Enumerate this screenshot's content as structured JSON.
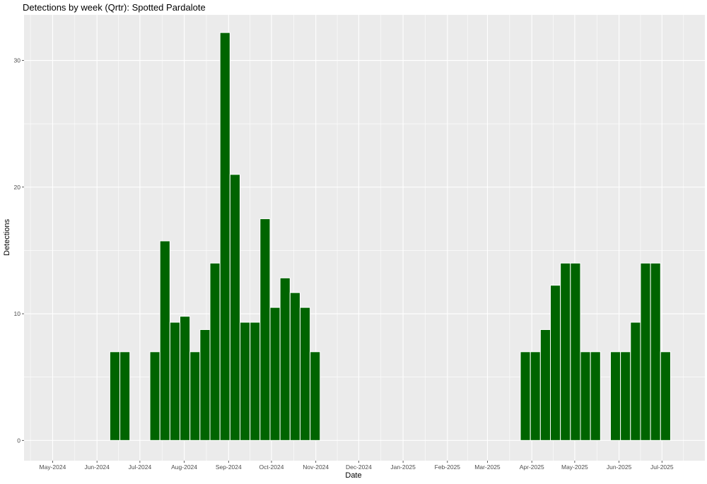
{
  "chart_data": {
    "type": "bar",
    "title": "Detections by week (Qrtr): Spotted Pardalote",
    "xlabel": "Date",
    "ylabel": "Detections",
    "bar_color": "#006400",
    "panel_color": "#ebebeb",
    "grid": true,
    "x_range": [
      "2024-04-11",
      "2025-07-31"
    ],
    "ylim": [
      -1.6,
      33.6
    ],
    "y_ticks": [
      0,
      10,
      20,
      30
    ],
    "x_ticks": [
      {
        "date": "2024-05-01",
        "label": "May-2024"
      },
      {
        "date": "2024-06-01",
        "label": "Jun-2024"
      },
      {
        "date": "2024-07-01",
        "label": "Jul-2024"
      },
      {
        "date": "2024-08-01",
        "label": "Aug-2024"
      },
      {
        "date": "2024-09-01",
        "label": "Sep-2024"
      },
      {
        "date": "2024-10-01",
        "label": "Oct-2024"
      },
      {
        "date": "2024-11-01",
        "label": "Nov-2024"
      },
      {
        "date": "2024-12-01",
        "label": "Dec-2024"
      },
      {
        "date": "2025-01-01",
        "label": "Jan-2025"
      },
      {
        "date": "2025-02-01",
        "label": "Feb-2025"
      },
      {
        "date": "2025-03-01",
        "label": "Mar-2025"
      },
      {
        "date": "2025-04-01",
        "label": "Apr-2025"
      },
      {
        "date": "2025-05-01",
        "label": "May-2025"
      },
      {
        "date": "2025-06-01",
        "label": "Jun-2025"
      },
      {
        "date": "2025-07-01",
        "label": "Jul-2025"
      }
    ],
    "bars": [
      {
        "week": "2024-06-10",
        "value": 7
      },
      {
        "week": "2024-06-17",
        "value": 7
      },
      {
        "week": "2024-07-08",
        "value": 7
      },
      {
        "week": "2024-07-15",
        "value": 15.75
      },
      {
        "week": "2024-07-22",
        "value": 9.33
      },
      {
        "week": "2024-07-29",
        "value": 9.8
      },
      {
        "week": "2024-08-05",
        "value": 7
      },
      {
        "week": "2024-08-12",
        "value": 8.75
      },
      {
        "week": "2024-08-19",
        "value": 14
      },
      {
        "week": "2024-08-26",
        "value": 32.2
      },
      {
        "week": "2024-09-02",
        "value": 21
      },
      {
        "week": "2024-09-09",
        "value": 9.33
      },
      {
        "week": "2024-09-16",
        "value": 9.33
      },
      {
        "week": "2024-09-23",
        "value": 17.5
      },
      {
        "week": "2024-09-30",
        "value": 10.5
      },
      {
        "week": "2024-10-07",
        "value": 12.83
      },
      {
        "week": "2024-10-14",
        "value": 11.67
      },
      {
        "week": "2024-10-21",
        "value": 10.5
      },
      {
        "week": "2024-10-28",
        "value": 7
      },
      {
        "week": "2025-03-24",
        "value": 7
      },
      {
        "week": "2025-03-31",
        "value": 7
      },
      {
        "week": "2025-04-07",
        "value": 8.75
      },
      {
        "week": "2025-04-14",
        "value": 12.25
      },
      {
        "week": "2025-04-21",
        "value": 14
      },
      {
        "week": "2025-04-28",
        "value": 14
      },
      {
        "week": "2025-05-05",
        "value": 7
      },
      {
        "week": "2025-05-12",
        "value": 7
      },
      {
        "week": "2025-05-26",
        "value": 7
      },
      {
        "week": "2025-06-02",
        "value": 7
      },
      {
        "week": "2025-06-09",
        "value": 9.33
      },
      {
        "week": "2025-06-16",
        "value": 14
      },
      {
        "week": "2025-06-23",
        "value": 14
      },
      {
        "week": "2025-06-30",
        "value": 7
      }
    ]
  }
}
